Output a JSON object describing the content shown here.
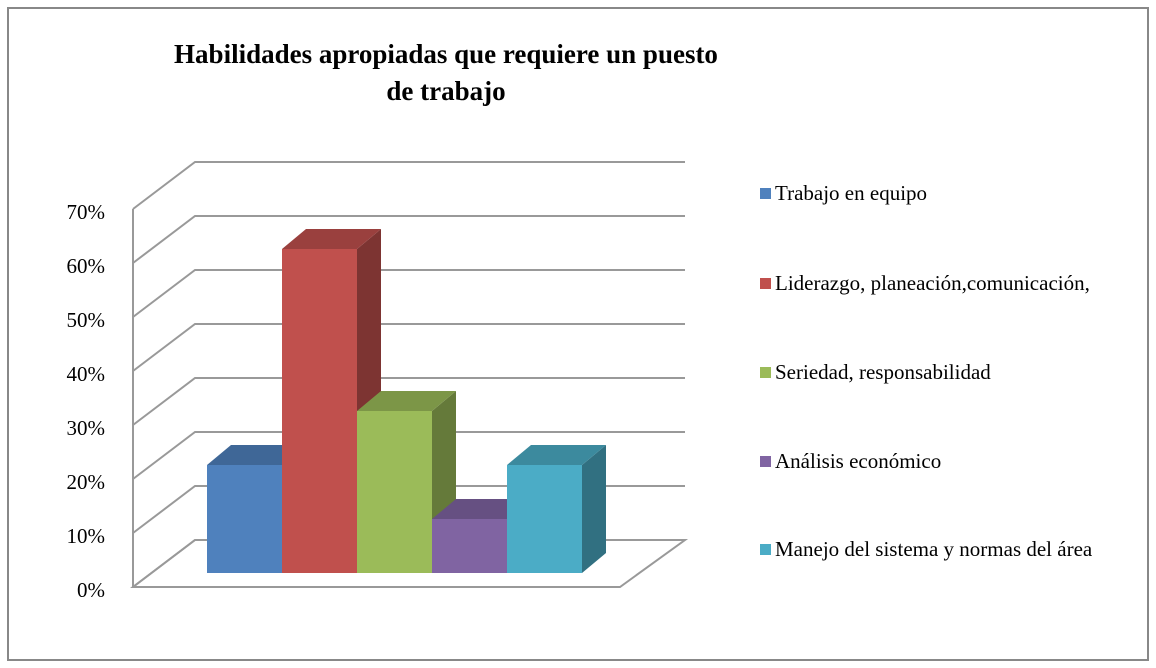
{
  "chart_data": {
    "type": "bar3d",
    "title": "Habilidades apropiadas que requiere un puesto de trabajo",
    "categories": [
      "Trabajo en equipo",
      "Liderazgo, planeación,comunicación,",
      "Seriedad, responsabilidad",
      "Análisis económico",
      "Manejo del sistema y normas del área"
    ],
    "values": [
      20,
      60,
      30,
      10,
      20
    ],
    "colors": [
      "#4f81bd",
      "#c0504d",
      "#9bbb59",
      "#8064a2",
      "#4bacc6"
    ],
    "ylim": [
      0,
      70
    ],
    "yticks": [
      {
        "value": 0,
        "label": "0%"
      },
      {
        "value": 10,
        "label": "10%"
      },
      {
        "value": 20,
        "label": "20%"
      },
      {
        "value": 30,
        "label": "30%"
      },
      {
        "value": 40,
        "label": "40%"
      },
      {
        "value": 50,
        "label": "50%"
      },
      {
        "value": 60,
        "label": "60%"
      },
      {
        "value": 70,
        "label": "70%"
      }
    ],
    "grid": true,
    "legend": "right"
  }
}
